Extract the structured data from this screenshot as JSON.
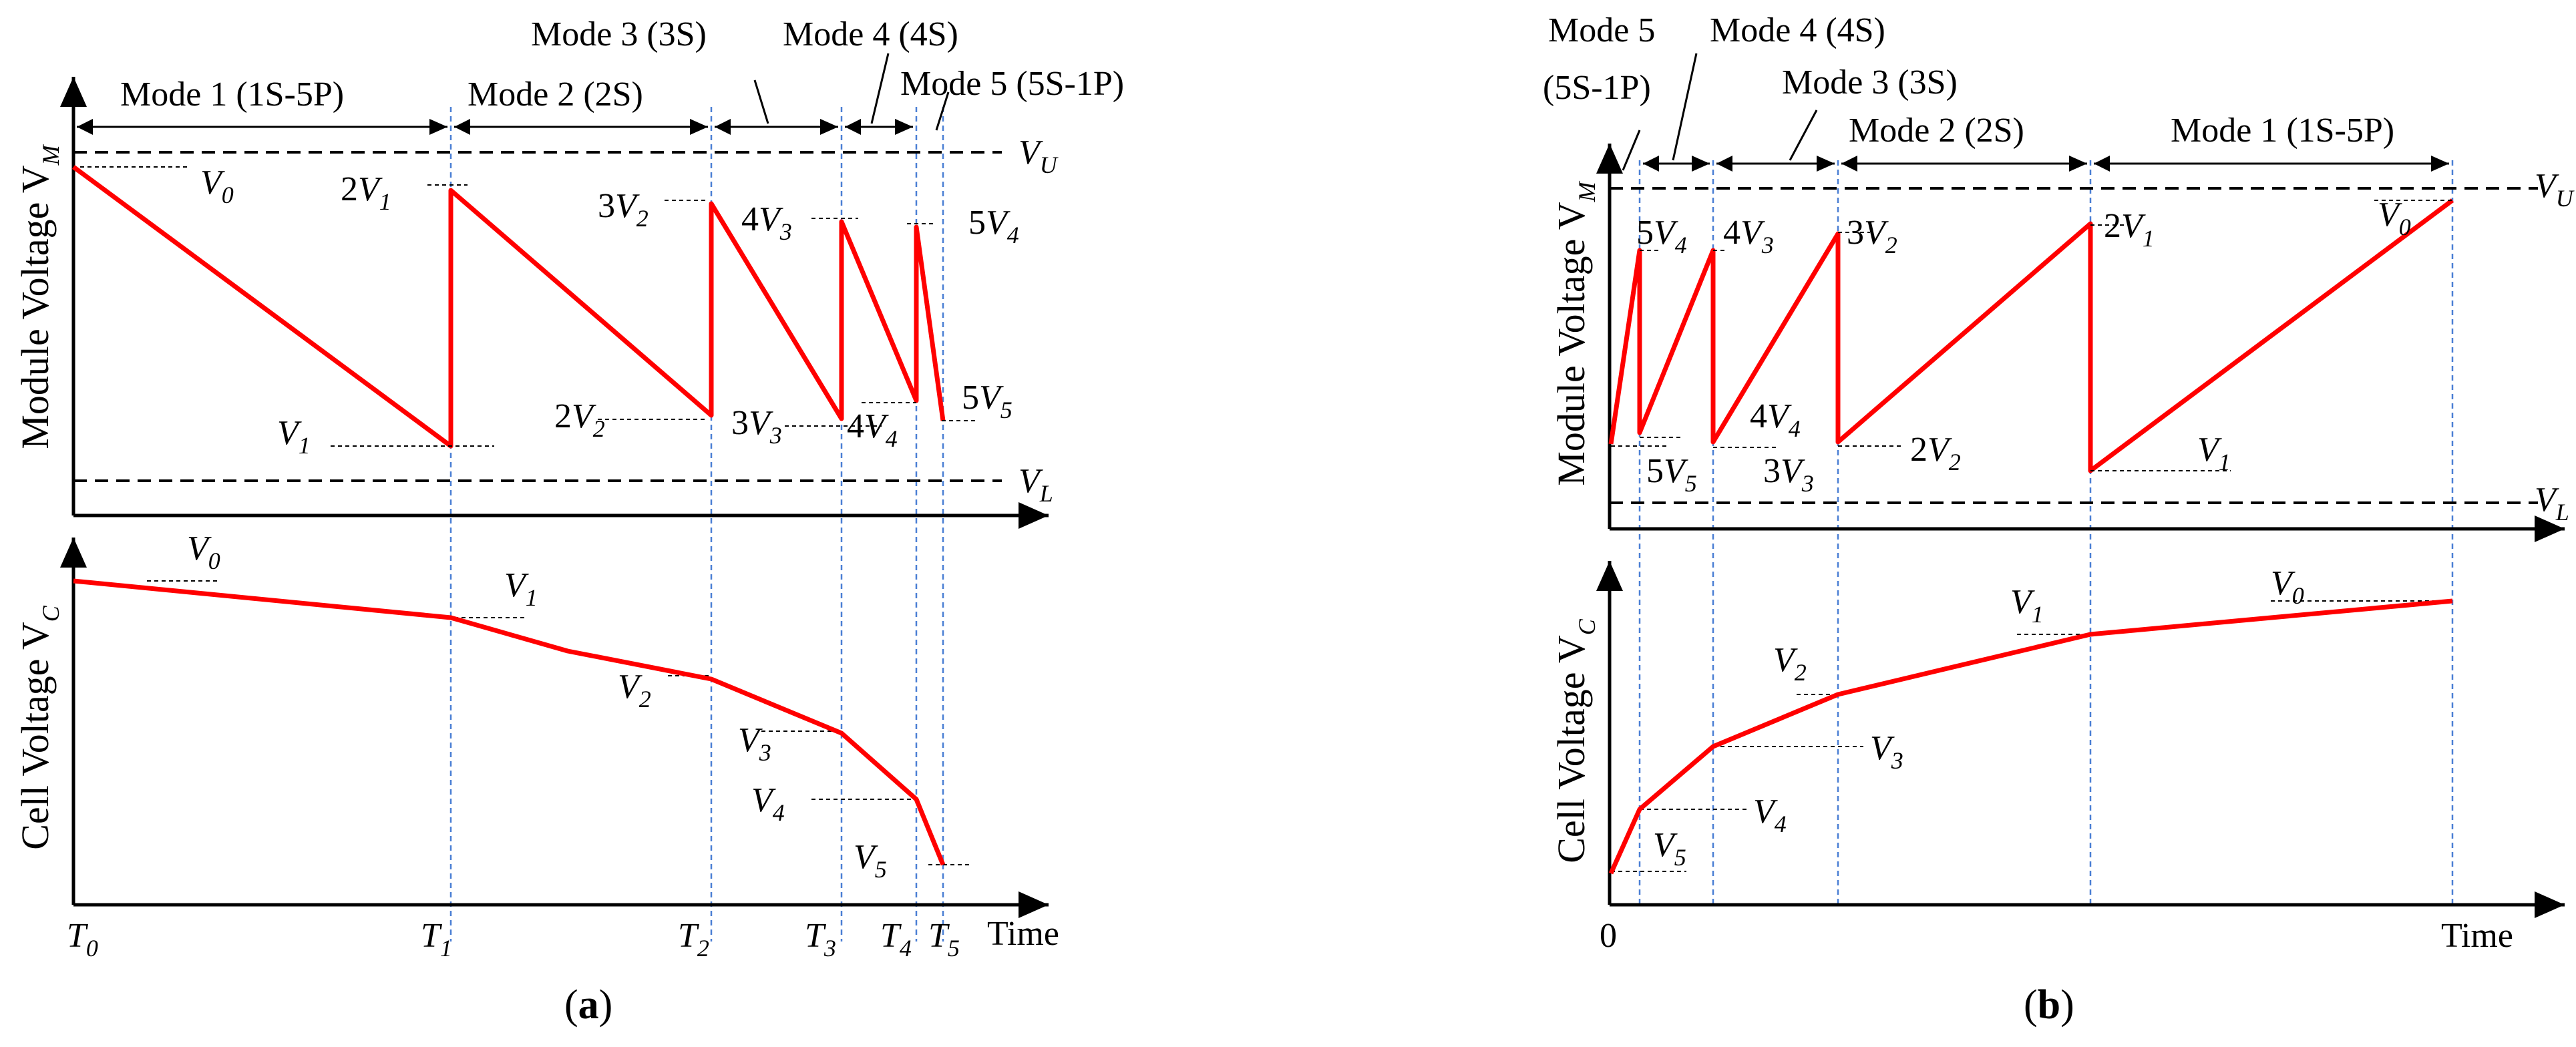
{
  "panel_a": {
    "caption": "(a)",
    "caption_bold": "a",
    "axis_title_top": "Module Voltage V",
    "axis_title_top_sub": "M",
    "axis_title_bottom": "Cell Voltage V",
    "axis_title_bottom_sub": "C",
    "x_axis_label": "Time",
    "modes": [
      "Mode 1 (1S-5P)",
      "Mode 2 (2S)",
      "Mode 3 (3S)",
      "Mode 4 (4S)",
      "Mode 5 (5S-1P)"
    ],
    "limits": {
      "upper": "V",
      "upper_sub": "U",
      "lower": "V",
      "lower_sub": "L"
    },
    "time_ticks": [
      {
        "t": "T",
        "s": "0"
      },
      {
        "t": "T",
        "s": "1"
      },
      {
        "t": "T",
        "s": "2"
      },
      {
        "t": "T",
        "s": "3"
      },
      {
        "t": "T",
        "s": "4"
      },
      {
        "t": "T",
        "s": "5"
      }
    ],
    "module_labels_high": [
      {
        "c": "",
        "s": "0"
      },
      {
        "c": "2",
        "s": "1"
      },
      {
        "c": "3",
        "s": "2"
      },
      {
        "c": "4",
        "s": "3"
      },
      {
        "c": "5",
        "s": "4"
      }
    ],
    "module_labels_low": [
      {
        "c": "",
        "s": "1"
      },
      {
        "c": "2",
        "s": "2"
      },
      {
        "c": "3",
        "s": "3"
      },
      {
        "c": "4",
        "s": "4"
      },
      {
        "c": "5",
        "s": "5"
      }
    ],
    "cell_labels": [
      "0",
      "1",
      "2",
      "3",
      "4",
      "5"
    ],
    "data_relative": {
      "boundaries": [
        0,
        0.385,
        0.663,
        0.8,
        0.879,
        0.908
      ],
      "module_high": [
        0.9,
        0.84,
        0.79,
        0.73,
        0.72
      ],
      "module_low": [
        0.09,
        0.19,
        0.16,
        0.21,
        0.17
      ],
      "cell": [
        0.9,
        0.78,
        0.59,
        0.42,
        0.2,
        0.03
      ]
    }
  },
  "panel_b": {
    "caption": "(b)",
    "caption_bold": "b",
    "axis_title_top": "Module Voltage V",
    "axis_title_top_sub": "M",
    "axis_title_bottom": "Cell Voltage V",
    "axis_title_bottom_sub": "C",
    "x_axis_label": "Time",
    "origin_label": "0",
    "modes": [
      "Mode 5",
      "(5S-1P)",
      "Mode 4 (4S)",
      "Mode 3 (3S)",
      "Mode 2 (2S)",
      "Mode 1 (1S-5P)"
    ],
    "limits": {
      "upper": "V",
      "upper_sub": "U",
      "lower": "V",
      "lower_sub": "L"
    },
    "module_labels_high": [
      {
        "c": "5",
        "s": "4"
      },
      {
        "c": "4",
        "s": "3"
      },
      {
        "c": "3",
        "s": "2"
      },
      {
        "c": "2",
        "s": "1"
      },
      {
        "c": "",
        "s": "0"
      }
    ],
    "module_labels_low": [
      {
        "c": "5",
        "s": "5"
      },
      {
        "c": "4",
        "s": "4"
      },
      {
        "c": "3",
        "s": "3"
      },
      {
        "c": "2",
        "s": "2"
      },
      {
        "c": "",
        "s": "1"
      }
    ],
    "cell_labels": [
      "5",
      "4",
      "3",
      "2",
      "1",
      "0"
    ],
    "data_relative": {
      "boundaries": [
        0,
        0.033,
        0.119,
        0.257,
        0.541,
        0.941
      ],
      "module_high": [
        0.73,
        0.73,
        0.78,
        0.8,
        0.88
      ],
      "module_low": [
        0.17,
        0.18,
        0.18,
        0.18,
        0.09
      ],
      "cell": [
        0.03,
        0.2,
        0.42,
        0.59,
        0.78,
        0.9
      ]
    }
  }
}
